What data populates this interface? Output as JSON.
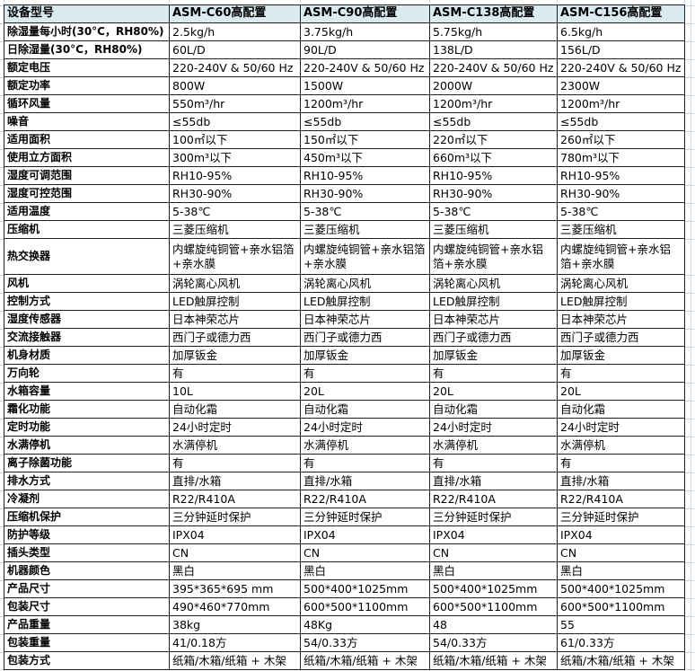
{
  "table": {
    "header": {
      "label": "设备型号",
      "models": [
        "ASM-C60高配置",
        "ASM-C90高配置",
        "ASM-C138高配置",
        "ASM-C156高配置"
      ]
    },
    "rows": [
      {
        "label": "除湿量每小时(30°C，RH80%)",
        "values": [
          "2.5kg/h",
          "3.75kg/h",
          "5.75kg/h",
          "6.5kg/h"
        ]
      },
      {
        "label": "日除湿量(30°C，RH80%)",
        "values": [
          "60L/D",
          "90L/D",
          "138L/D",
          "156L/D"
        ]
      },
      {
        "label": "额定电压",
        "values": [
          "220-240V & 50/60 Hz",
          "220-240V & 50/60 Hz",
          "220-240V & 50/60 Hz",
          "220-240V & 50/60 Hz"
        ]
      },
      {
        "label": "额定功率",
        "values": [
          "800W",
          "1500W",
          "2000W",
          "2300W"
        ]
      },
      {
        "label": "循环风量",
        "values": [
          "550m³/hr",
          "1200m³/hr",
          "1200m³/hr",
          "1200m³/hr"
        ]
      },
      {
        "label": "噪音",
        "values": [
          "≤55db",
          "≤55db",
          "≤55db",
          "≤55db"
        ]
      },
      {
        "label": "适用面积",
        "values": [
          "100㎡以下",
          "150㎡以下",
          "220㎡以下",
          "260㎡以下"
        ]
      },
      {
        "label": "使用立方面积",
        "values": [
          "300m³以下",
          "450m³以下",
          "660m³以下",
          "780m³以下"
        ]
      },
      {
        "label": "湿度可调范围",
        "values": [
          "RH10-95%",
          "RH10-95%",
          "RH10-95%",
          "RH10-95%"
        ]
      },
      {
        "label": "湿度可控范围",
        "values": [
          "RH30-90%",
          "RH30-90%",
          "RH30-90%",
          "RH30-90%"
        ]
      },
      {
        "label": "适用温度",
        "values": [
          "5-38℃",
          "5-38℃",
          "5-38℃",
          "5-38℃"
        ]
      },
      {
        "label": "压缩机",
        "values": [
          "三菱压缩机",
          "三菱压缩机",
          "三菱压缩机",
          "三菱压缩机"
        ]
      },
      {
        "label": "热交换器",
        "tall": true,
        "values": [
          "内螺旋纯铜管+亲水铝箔+亲水膜",
          "内螺旋纯铜管+亲水铝箔+亲水膜",
          "内螺旋纯铜管+亲水铝箔+亲水膜",
          "内螺旋纯铜管+亲水铝箔+亲水膜"
        ]
      },
      {
        "label": "风机",
        "values": [
          "涡轮离心风机",
          "涡轮离心风机",
          "涡轮离心风机",
          "涡轮离心风机"
        ]
      },
      {
        "label": "控制方式",
        "values": [
          "LED触屏控制",
          "LED触屏控制",
          "LED触屏控制",
          "LED触屏控制"
        ]
      },
      {
        "label": "湿度传感器",
        "values": [
          "日本神荣芯片",
          "日本神荣芯片",
          "日本神荣芯片",
          "日本神荣芯片"
        ]
      },
      {
        "label": "交流接触器",
        "values": [
          "西门子或德力西",
          "西门子或德力西",
          "西门子或德力西",
          "西门子或德力西"
        ]
      },
      {
        "label": "机身材质",
        "values": [
          "加厚钣金",
          "加厚钣金",
          "加厚钣金",
          "加厚钣金"
        ]
      },
      {
        "label": "万向轮",
        "values": [
          "有",
          "有",
          "有",
          "有"
        ]
      },
      {
        "label": "水箱容量",
        "values": [
          "10L",
          "20L",
          "20L",
          "20L"
        ]
      },
      {
        "label": "霜化功能",
        "values": [
          "自动化霜",
          "自动化霜",
          "自动化霜",
          "自动化霜"
        ]
      },
      {
        "label": "定时功能",
        "values": [
          "24小时定时",
          "24小时定时",
          "24小时定时",
          "24小时定时"
        ]
      },
      {
        "label": "水满停机",
        "values": [
          "水满停机",
          "水满停机",
          "水满停机",
          "水满停机"
        ]
      },
      {
        "label": "离子除菌功能",
        "values": [
          "有",
          "有",
          "有",
          "有"
        ]
      },
      {
        "label": "排水方式",
        "values": [
          "直排/水箱",
          "直排/水箱",
          "直排/水箱",
          "直排/水箱"
        ]
      },
      {
        "label": "冷凝剂",
        "values": [
          "R22/R410A",
          "R22/R410A",
          "R22/R410A",
          "R22/R410A"
        ]
      },
      {
        "label": "压缩机保护",
        "values": [
          "三分钟延时保护",
          "三分钟延时保护",
          "三分钟延时保护",
          "三分钟延时保护"
        ]
      },
      {
        "label": "防护等级",
        "values": [
          "IPX04",
          "IPX04",
          "IPX04",
          "IPX04"
        ]
      },
      {
        "label": "插头类型",
        "values": [
          "CN",
          "CN",
          "CN",
          "CN"
        ]
      },
      {
        "label": "机器颜色",
        "values": [
          "黑白",
          "黑白",
          "黑白",
          "黑白"
        ]
      },
      {
        "label": "产品尺寸",
        "values": [
          "395*365*695 mm",
          "500*400*1025mm",
          "500*400*1025mm",
          "500*400*1025mm"
        ]
      },
      {
        "label": "包装尺寸",
        "values": [
          "490*460*770mm",
          "600*500*1100mm",
          "600*500*1100mm",
          "600*500*1100mm"
        ]
      },
      {
        "label": "产品重量",
        "values": [
          "38kg",
          "48Kg",
          "48",
          "55"
        ]
      },
      {
        "label": "包装重量",
        "values": [
          "41/0.18方",
          "54/0.33方",
          "54/0.33方",
          "61/0.33方"
        ]
      },
      {
        "label": "包装方式",
        "values": [
          "纸箱/木箱/纸箱 + 木架",
          "纸箱/木箱/纸箱 + 木架",
          "纸箱/木箱/纸箱 + 木架",
          "纸箱/木箱/纸箱 + 木架"
        ]
      }
    ]
  },
  "colors": {
    "header_bg": "#daeaf1",
    "cell_border": "#1f1f1f",
    "gridline": "#cdd9e6",
    "text": "#000000",
    "cell_bg": "#ffffff"
  }
}
